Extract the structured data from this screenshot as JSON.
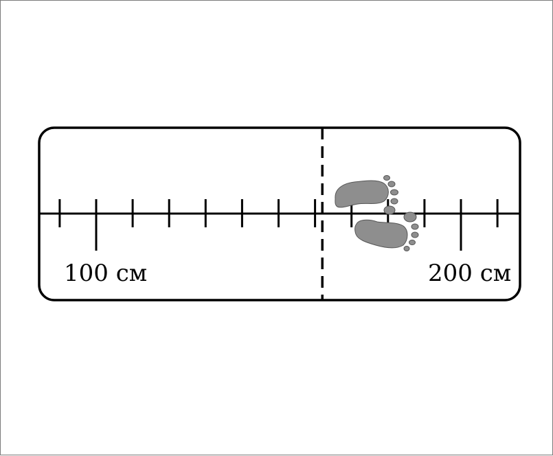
{
  "diagram": {
    "left_label": "100 см",
    "right_label": "200 см",
    "left_label_value_cm": 100,
    "right_label_value_cm": 200,
    "tick_step_cm": 10,
    "first_tick_cm": 90,
    "last_tick_cm": 210,
    "jump_mark_cm": 162,
    "footprint_color": "#8e8e8e",
    "line_color": "#000000"
  }
}
